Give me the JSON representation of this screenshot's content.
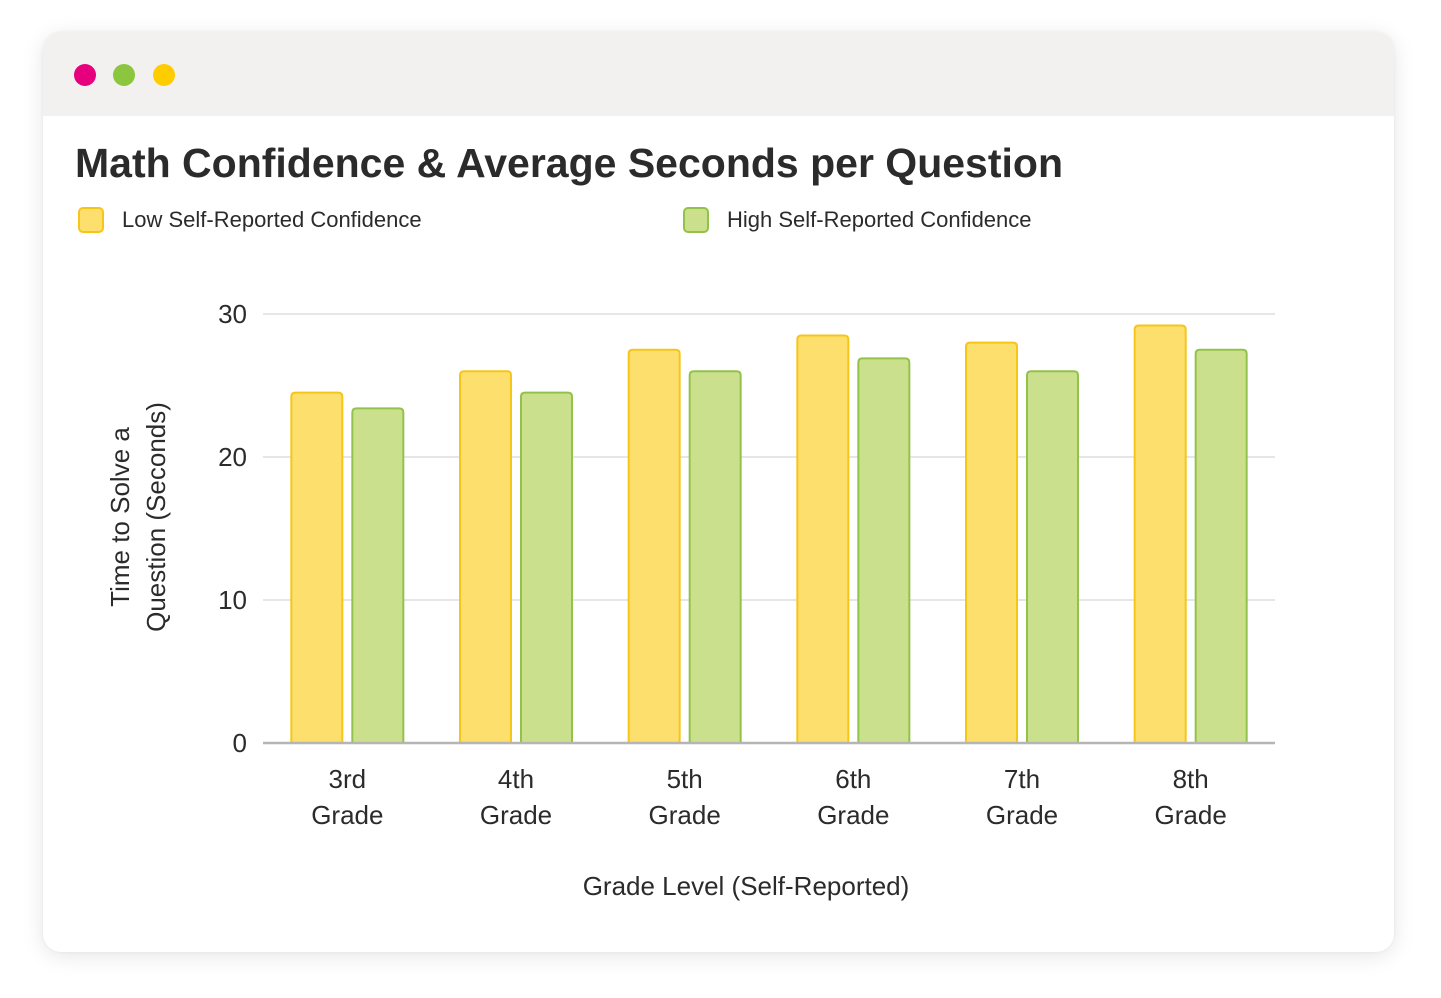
{
  "window": {
    "controls": [
      {
        "name": "close",
        "color": "#e6007e"
      },
      {
        "name": "minimize",
        "color": "#8cc63f"
      },
      {
        "name": "maximize",
        "color": "#ffcc00"
      }
    ],
    "background": "#f2f1f0"
  },
  "chart_data": {
    "type": "bar",
    "title": "Math Confidence & Average Seconds per Question",
    "xlabel": "Grade Level (Self-Reported)",
    "ylabel_lines": [
      "Time to Solve a",
      "Question (Seconds)"
    ],
    "categories": [
      [
        "3rd",
        "Grade"
      ],
      [
        "4th",
        "Grade"
      ],
      [
        "5th",
        "Grade"
      ],
      [
        "6th",
        "Grade"
      ],
      [
        "7th",
        "Grade"
      ],
      [
        "8th",
        "Grade"
      ]
    ],
    "series": [
      {
        "name": "Low Self-Reported Confidence",
        "values": [
          24.5,
          26.0,
          27.5,
          28.5,
          28.0,
          29.2
        ],
        "fill": "#fddf6e",
        "stroke": "#f6c518"
      },
      {
        "name": "High Self-Reported Confidence",
        "values": [
          23.4,
          24.5,
          26.0,
          26.9,
          26.0,
          27.5
        ],
        "fill": "#cbe08d",
        "stroke": "#93c24a"
      }
    ],
    "yticks": [
      0,
      10,
      20,
      30
    ],
    "ylim": [
      0,
      30
    ],
    "grid": true,
    "legend_position": "top"
  }
}
